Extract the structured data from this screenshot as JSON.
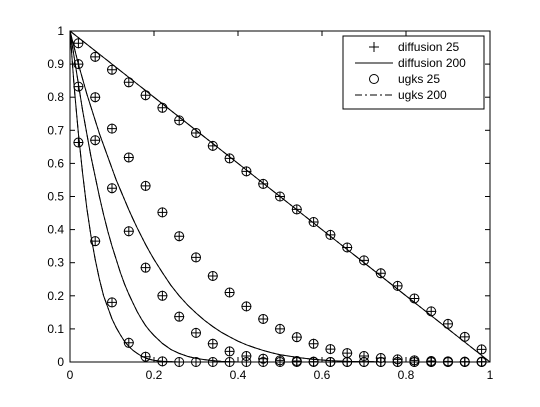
{
  "chart_data": {
    "type": "line",
    "title": "",
    "xlabel": "",
    "ylabel": "",
    "xlim": [
      0,
      1
    ],
    "ylim": [
      0,
      1
    ],
    "xticks": [
      "0",
      "0.2",
      "0.4",
      "0.6",
      "0.8",
      "1"
    ],
    "yticks": [
      "0",
      "0.1",
      "0.2",
      "0.3",
      "0.4",
      "0.5",
      "0.6",
      "0.7",
      "0.8",
      "0.9",
      "1"
    ],
    "grid": false,
    "legend_position": "top-right",
    "legend": [
      {
        "label": "diffusion 25",
        "marker": "plus"
      },
      {
        "label": "diffusion 200",
        "marker": "solid-line"
      },
      {
        "label": "ugks 25",
        "marker": "circle"
      },
      {
        "label": "ugks 200",
        "marker": "dash-dot-line"
      }
    ],
    "x25": [
      0.02,
      0.06,
      0.1,
      0.14,
      0.18,
      0.22,
      0.26,
      0.3,
      0.34,
      0.38,
      0.42,
      0.46,
      0.5,
      0.54,
      0.58,
      0.62,
      0.66,
      0.7,
      0.74,
      0.78,
      0.82,
      0.86,
      0.9,
      0.94,
      0.98
    ],
    "x200": [
      0,
      0.01,
      0.02,
      0.03,
      0.04,
      0.05,
      0.06,
      0.07,
      0.08,
      0.09,
      0.1,
      0.11,
      0.12,
      0.13,
      0.14,
      0.15,
      0.16,
      0.17,
      0.18,
      0.19,
      0.2,
      0.22,
      0.24,
      0.26,
      0.28,
      0.3,
      0.32,
      0.34,
      0.36,
      0.38,
      0.4,
      0.42,
      0.44,
      0.46,
      0.48,
      0.5,
      0.52,
      0.54,
      0.56,
      0.58,
      0.6,
      0.62,
      0.64,
      0.66,
      0.68,
      0.7,
      0.72,
      0.74,
      0.76,
      0.78,
      0.8,
      0.82,
      0.84,
      0.86,
      0.88,
      0.9,
      0.92,
      0.94,
      0.96,
      0.98,
      1
    ],
    "curves": [
      {
        "values25": [
          0.663,
          0.365,
          0.18,
          0.058,
          0.016,
          0.002,
          0.0,
          0.0,
          0.0,
          0.0,
          0.0,
          0.0,
          0.0,
          0.0,
          0.0,
          0.0,
          0.0,
          0.0,
          0.0,
          0.0,
          0.0,
          0.0,
          0.0,
          0.0,
          0.0
        ],
        "values200": [
          1,
          0.83,
          0.69,
          0.57,
          0.465,
          0.38,
          0.31,
          0.25,
          0.2,
          0.165,
          0.13,
          0.104,
          0.082,
          0.062,
          0.047,
          0.035,
          0.026,
          0.018,
          0.012,
          0.008,
          0.005,
          0.002,
          0.001,
          0,
          0,
          0,
          0,
          0,
          0,
          0,
          0,
          0,
          0,
          0,
          0,
          0,
          0,
          0,
          0,
          0,
          0,
          0,
          0,
          0,
          0,
          0,
          0,
          0,
          0,
          0,
          0,
          0,
          0,
          0,
          0,
          0,
          0,
          0,
          0,
          0,
          0
        ]
      },
      {
        "values25": [
          0.832,
          0.67,
          0.525,
          0.395,
          0.285,
          0.2,
          0.137,
          0.088,
          0.055,
          0.032,
          0.018,
          0.01,
          0.005,
          0.003,
          0.001,
          0.0,
          0.0,
          0.0,
          0.0,
          0.0,
          0.0,
          0.0,
          0.0,
          0.0,
          0.0
        ],
        "values200": [
          1,
          0.92,
          0.84,
          0.76,
          0.69,
          0.62,
          0.56,
          0.5,
          0.445,
          0.395,
          0.35,
          0.31,
          0.27,
          0.235,
          0.205,
          0.178,
          0.152,
          0.13,
          0.11,
          0.094,
          0.08,
          0.056,
          0.038,
          0.026,
          0.017,
          0.011,
          0.007,
          0.004,
          0.002,
          0.001,
          0,
          0,
          0,
          0,
          0,
          0,
          0,
          0,
          0,
          0,
          0,
          0,
          0,
          0,
          0,
          0,
          0,
          0,
          0,
          0,
          0,
          0,
          0,
          0,
          0,
          0,
          0,
          0,
          0,
          0,
          0
        ]
      },
      {
        "values25": [
          0.9,
          0.8,
          0.705,
          0.618,
          0.532,
          0.452,
          0.38,
          0.316,
          0.26,
          0.21,
          0.168,
          0.13,
          0.1,
          0.075,
          0.055,
          0.039,
          0.027,
          0.018,
          0.012,
          0.008,
          0.005,
          0.003,
          0.002,
          0.001,
          0.001
        ],
        "values200": [
          1,
          0.95,
          0.9,
          0.855,
          0.81,
          0.77,
          0.73,
          0.69,
          0.655,
          0.62,
          0.585,
          0.55,
          0.52,
          0.49,
          0.46,
          0.432,
          0.405,
          0.38,
          0.355,
          0.332,
          0.31,
          0.27,
          0.232,
          0.2,
          0.172,
          0.148,
          0.126,
          0.107,
          0.09,
          0.076,
          0.063,
          0.052,
          0.043,
          0.035,
          0.028,
          0.022,
          0.018,
          0.014,
          0.011,
          0.008,
          0.006,
          0.004,
          0.003,
          0.002,
          0.001,
          0.001,
          0.001,
          0,
          0,
          0,
          0,
          0,
          0,
          0,
          0,
          0,
          0,
          0,
          0,
          0,
          0
        ]
      },
      {
        "values25": [
          0.963,
          0.922,
          0.883,
          0.845,
          0.806,
          0.768,
          0.73,
          0.692,
          0.653,
          0.615,
          0.576,
          0.538,
          0.5,
          0.461,
          0.423,
          0.384,
          0.346,
          0.307,
          0.268,
          0.23,
          0.192,
          0.153,
          0.115,
          0.076,
          0.038
        ],
        "values200": [
          1,
          0.99,
          0.98,
          0.97,
          0.96,
          0.95,
          0.94,
          0.93,
          0.92,
          0.91,
          0.9,
          0.89,
          0.88,
          0.87,
          0.86,
          0.85,
          0.84,
          0.83,
          0.82,
          0.81,
          0.8,
          0.78,
          0.76,
          0.74,
          0.72,
          0.7,
          0.68,
          0.66,
          0.64,
          0.62,
          0.6,
          0.58,
          0.56,
          0.54,
          0.52,
          0.5,
          0.48,
          0.46,
          0.44,
          0.42,
          0.4,
          0.38,
          0.36,
          0.34,
          0.32,
          0.3,
          0.28,
          0.26,
          0.24,
          0.22,
          0.2,
          0.18,
          0.16,
          0.14,
          0.12,
          0.1,
          0.08,
          0.06,
          0.04,
          0.02,
          0
        ]
      }
    ]
  }
}
